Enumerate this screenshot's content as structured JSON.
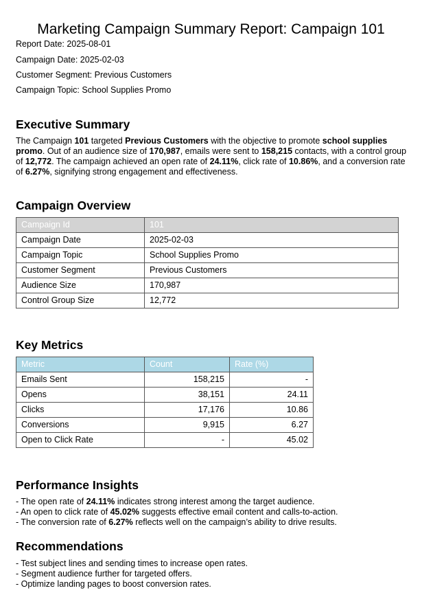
{
  "title": "Marketing Campaign Summary Report: Campaign 101",
  "meta": {
    "report_date": "Report Date: 2025-08-01",
    "campaign_date": "Campaign Date: 2025-02-03",
    "customer_segment": "Customer Segment: Previous Customers",
    "campaign_topic": "Campaign Topic: School Supplies Promo"
  },
  "executive_summary": {
    "heading": "Executive Summary",
    "p1": "The Campaign ",
    "b1": "101",
    "p2": " targeted ",
    "b2": "Previous Customers",
    "p3": " with the objective to promote ",
    "b3": "school supplies promo",
    "p4": ". Out of an audience size of ",
    "b4": "170,987",
    "p5": ", emails were sent to ",
    "b5": "158,215",
    "p6": " contacts, with a control group of ",
    "b6": "12,772",
    "p7": ". The campaign achieved an open rate of ",
    "b7": "24.11%",
    "p8": ", click rate of ",
    "b8": "10.86%",
    "p9": ", and a conversion rate of ",
    "b9": "6.27%",
    "p10": ", signifying strong engagement and effectiveness."
  },
  "overview": {
    "heading": "Campaign Overview",
    "header": [
      "Campaign Id",
      "101"
    ],
    "rows": [
      [
        "Campaign Date",
        "2025-02-03"
      ],
      [
        "Campaign Topic",
        "School Supplies Promo"
      ],
      [
        "Customer Segment",
        "Previous Customers"
      ],
      [
        "Audience Size",
        "170,987"
      ],
      [
        "Control Group Size",
        "12,772"
      ]
    ]
  },
  "metrics": {
    "heading": "Key Metrics",
    "columns": [
      "Metric",
      "Count",
      "Rate (%)"
    ],
    "rows": [
      [
        "Emails Sent",
        "158,215",
        "-"
      ],
      [
        "Opens",
        "38,151",
        "24.11"
      ],
      [
        "Clicks",
        "17,176",
        "10.86"
      ],
      [
        "Conversions",
        "9,915",
        "6.27"
      ],
      [
        "Open to Click Rate",
        "-",
        "45.02"
      ]
    ]
  },
  "insights": {
    "heading": "Performance Insights",
    "items": [
      {
        "pre": "- The open rate of ",
        "bold": "24.11%",
        "post": " indicates strong interest among the target audience."
      },
      {
        "pre": "- An open to click rate of ",
        "bold": "45.02%",
        "post": " suggests effective email content and calls-to-action."
      },
      {
        "pre": "- The conversion rate of ",
        "bold": "6.27%",
        "post": " reflects well on the campaign’s ability to drive results."
      }
    ]
  },
  "recommendations": {
    "heading": "Recommendations",
    "items": [
      "- Test subject lines and sending times to increase open rates.",
      "- Segment audience further for targeted offers.",
      "- Optimize landing pages to boost conversion rates."
    ]
  }
}
